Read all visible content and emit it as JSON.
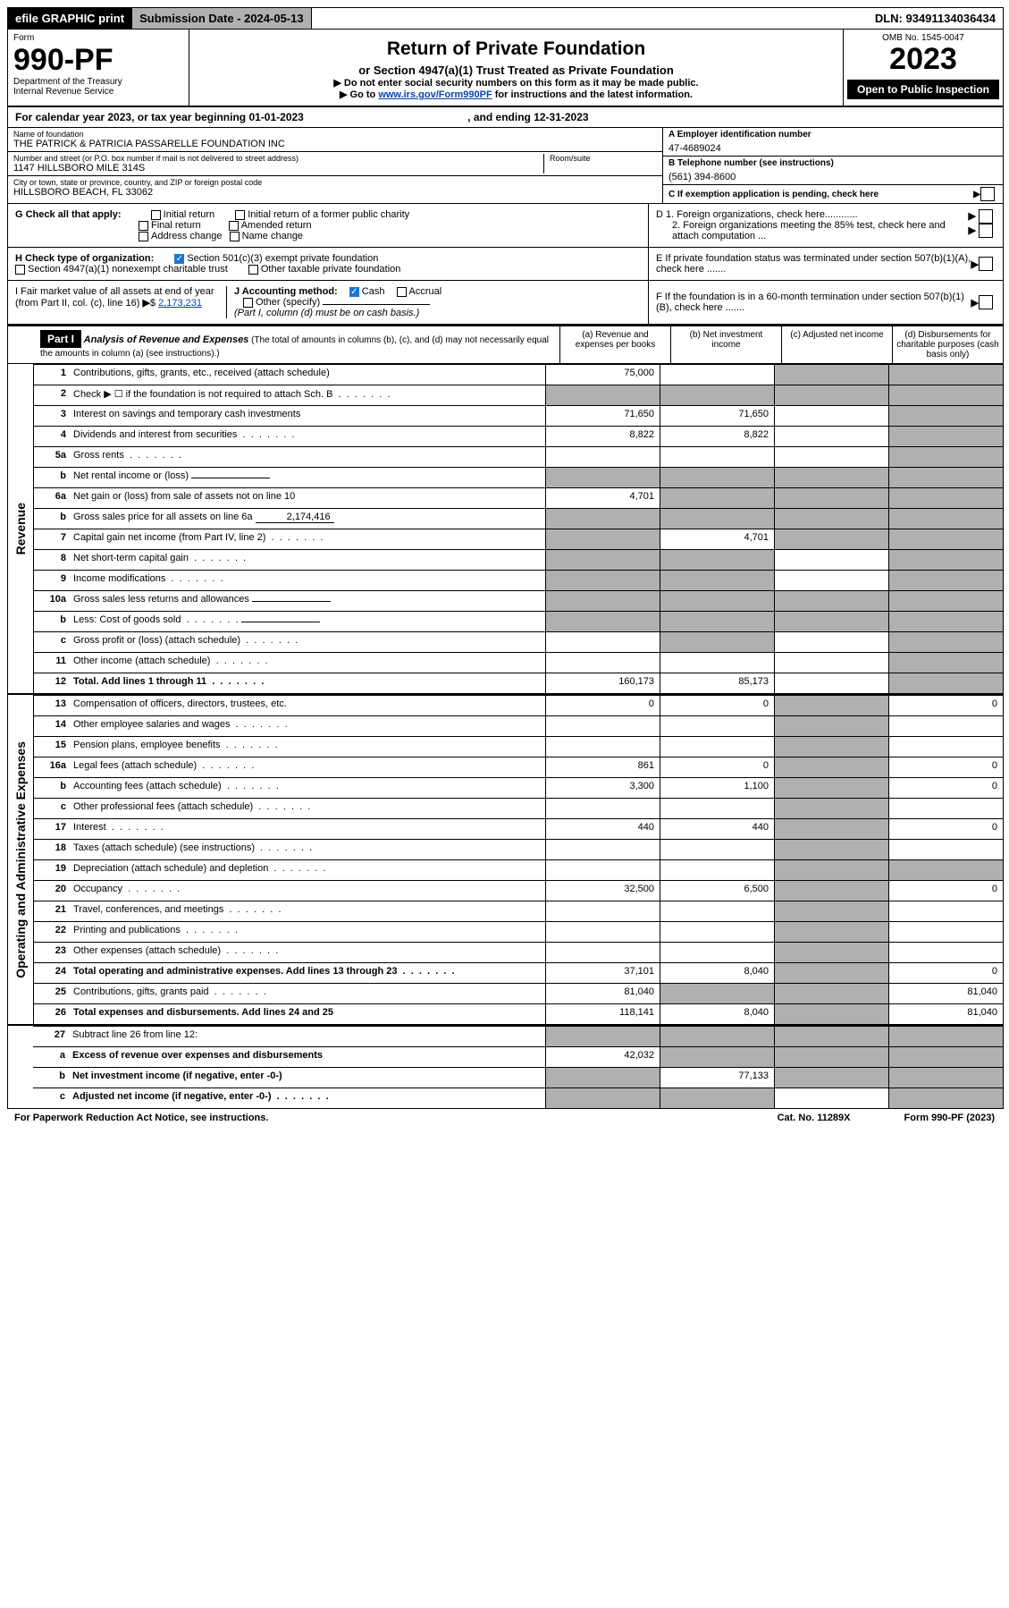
{
  "topbar": {
    "efile": "efile GRAPHIC print",
    "submission": "Submission Date - 2024-05-13",
    "dln": "DLN: 93491134036434"
  },
  "header": {
    "form_label": "Form",
    "form_no": "990-PF",
    "dept": "Department of the Treasury",
    "irs": "Internal Revenue Service",
    "title": "Return of Private Foundation",
    "subtitle": "or Section 4947(a)(1) Trust Treated as Private Foundation",
    "note1": "▶ Do not enter social security numbers on this form as it may be made public.",
    "note2_pre": "▶ Go to ",
    "note2_link": "www.irs.gov/Form990PF",
    "note2_post": " for instructions and the latest information.",
    "omb": "OMB No. 1545-0047",
    "year": "2023",
    "open": "Open to Public Inspection"
  },
  "cal_year": {
    "text_pre": "For calendar year 2023, or tax year beginning ",
    "begin": "01-01-2023",
    "text_mid": " , and ending ",
    "end": "12-31-2023"
  },
  "info": {
    "name_label": "Name of foundation",
    "name": "THE PATRICK & PATRICIA PASSARELLE FOUNDATION INC",
    "addr_label": "Number and street (or P.O. box number if mail is not delivered to street address)",
    "addr": "1147 HILLSBORO MILE 314S",
    "room_label": "Room/suite",
    "city_label": "City or town, state or province, country, and ZIP or foreign postal code",
    "city": "HILLSBORO BEACH, FL  33062",
    "a_label": "A Employer identification number",
    "a_val": "47-4689024",
    "b_label": "B Telephone number (see instructions)",
    "b_val": "(561) 394-8600",
    "c_label": "C If exemption application is pending, check here"
  },
  "checks": {
    "g_label": "G Check all that apply:",
    "g_opts": [
      "Initial return",
      "Initial return of a former public charity",
      "Final return",
      "Amended return",
      "Address change",
      "Name change"
    ],
    "h_label": "H Check type of organization:",
    "h_opt1": "Section 501(c)(3) exempt private foundation",
    "h_opt2": "Section 4947(a)(1) nonexempt charitable trust",
    "h_opt3": "Other taxable private foundation",
    "i_label": "I Fair market value of all assets at end of year (from Part II, col. (c), line 16)",
    "i_val": "2,173,231",
    "j_label": "J Accounting method:",
    "j_opts": [
      "Cash",
      "Accrual"
    ],
    "j_other": "Other (specify)",
    "j_note": "(Part I, column (d) must be on cash basis.)",
    "d1": "D 1. Foreign organizations, check here............",
    "d2": "2. Foreign organizations meeting the 85% test, check here and attach computation ...",
    "e": "E  If private foundation status was terminated under section 507(b)(1)(A), check here .......",
    "f": "F  If the foundation is in a 60-month termination under section 507(b)(1)(B), check here .......",
    "arrow": "▶"
  },
  "part1": {
    "label": "Part I",
    "title": "Analysis of Revenue and Expenses",
    "title_note": " (The total of amounts in columns (b), (c), and (d) may not necessarily equal the amounts in column (a) (see instructions).)",
    "col_a": "(a)   Revenue and expenses per books",
    "col_b": "(b)   Net investment income",
    "col_c": "(c)   Adjusted net income",
    "col_d": "(d)   Disbursements for charitable purposes (cash basis only)"
  },
  "side_labels": {
    "revenue": "Revenue",
    "expenses": "Operating and Administrative Expenses"
  },
  "rows": [
    {
      "n": "1",
      "d": "Contributions, gifts, grants, etc., received (attach schedule)",
      "a": "75,000",
      "b": "",
      "c": "shaded",
      "dd": "shaded"
    },
    {
      "n": "2",
      "d": "Check ▶ ☐ if the foundation is not required to attach Sch. B",
      "dots": true,
      "a": "shaded",
      "b": "shaded",
      "c": "shaded",
      "dd": "shaded"
    },
    {
      "n": "3",
      "d": "Interest on savings and temporary cash investments",
      "a": "71,650",
      "b": "71,650",
      "c": "",
      "dd": "shaded"
    },
    {
      "n": "4",
      "d": "Dividends and interest from securities",
      "dots": true,
      "a": "8,822",
      "b": "8,822",
      "c": "",
      "dd": "shaded"
    },
    {
      "n": "5a",
      "d": "Gross rents",
      "dots": true,
      "a": "",
      "b": "",
      "c": "",
      "dd": "shaded"
    },
    {
      "n": "b",
      "d": "Net rental income or (loss)",
      "inline": "",
      "a": "shaded",
      "b": "shaded",
      "c": "shaded",
      "dd": "shaded"
    },
    {
      "n": "6a",
      "d": "Net gain or (loss) from sale of assets not on line 10",
      "a": "4,701",
      "b": "shaded",
      "c": "shaded",
      "dd": "shaded"
    },
    {
      "n": "b",
      "d": "Gross sales price for all assets on line 6a",
      "inline": "2,174,416",
      "a": "shaded",
      "b": "shaded",
      "c": "shaded",
      "dd": "shaded"
    },
    {
      "n": "7",
      "d": "Capital gain net income (from Part IV, line 2)",
      "dots": true,
      "a": "shaded",
      "b": "4,701",
      "c": "shaded",
      "dd": "shaded"
    },
    {
      "n": "8",
      "d": "Net short-term capital gain",
      "dots": true,
      "a": "shaded",
      "b": "shaded",
      "c": "",
      "dd": "shaded"
    },
    {
      "n": "9",
      "d": "Income modifications",
      "dots": true,
      "a": "shaded",
      "b": "shaded",
      "c": "",
      "dd": "shaded"
    },
    {
      "n": "10a",
      "d": "Gross sales less returns and allowances",
      "inline": "",
      "a": "shaded",
      "b": "shaded",
      "c": "shaded",
      "dd": "shaded"
    },
    {
      "n": "b",
      "d": "Less: Cost of goods sold",
      "dots": true,
      "inline": "",
      "a": "shaded",
      "b": "shaded",
      "c": "shaded",
      "dd": "shaded"
    },
    {
      "n": "c",
      "d": "Gross profit or (loss) (attach schedule)",
      "dots": true,
      "a": "",
      "b": "shaded",
      "c": "",
      "dd": "shaded"
    },
    {
      "n": "11",
      "d": "Other income (attach schedule)",
      "dots": true,
      "a": "",
      "b": "",
      "c": "",
      "dd": "shaded"
    },
    {
      "n": "12",
      "d": "Total. Add lines 1 through 11",
      "dots": true,
      "bold": true,
      "a": "160,173",
      "b": "85,173",
      "c": "",
      "dd": "shaded"
    }
  ],
  "exp_rows": [
    {
      "n": "13",
      "d": "Compensation of officers, directors, trustees, etc.",
      "a": "0",
      "b": "0",
      "c": "shaded",
      "dd": "0"
    },
    {
      "n": "14",
      "d": "Other employee salaries and wages",
      "dots": true,
      "a": "",
      "b": "",
      "c": "shaded",
      "dd": ""
    },
    {
      "n": "15",
      "d": "Pension plans, employee benefits",
      "dots": true,
      "a": "",
      "b": "",
      "c": "shaded",
      "dd": ""
    },
    {
      "n": "16a",
      "d": "Legal fees (attach schedule)",
      "dots": true,
      "a": "861",
      "b": "0",
      "c": "shaded",
      "dd": "0"
    },
    {
      "n": "b",
      "d": "Accounting fees (attach schedule)",
      "dots": true,
      "a": "3,300",
      "b": "1,100",
      "c": "shaded",
      "dd": "0"
    },
    {
      "n": "c",
      "d": "Other professional fees (attach schedule)",
      "dots": true,
      "a": "",
      "b": "",
      "c": "shaded",
      "dd": ""
    },
    {
      "n": "17",
      "d": "Interest",
      "dots": true,
      "a": "440",
      "b": "440",
      "c": "shaded",
      "dd": "0"
    },
    {
      "n": "18",
      "d": "Taxes (attach schedule) (see instructions)",
      "dots": true,
      "a": "",
      "b": "",
      "c": "shaded",
      "dd": ""
    },
    {
      "n": "19",
      "d": "Depreciation (attach schedule) and depletion",
      "dots": true,
      "a": "",
      "b": "",
      "c": "shaded",
      "dd": "shaded"
    },
    {
      "n": "20",
      "d": "Occupancy",
      "dots": true,
      "a": "32,500",
      "b": "6,500",
      "c": "shaded",
      "dd": "0"
    },
    {
      "n": "21",
      "d": "Travel, conferences, and meetings",
      "dots": true,
      "a": "",
      "b": "",
      "c": "shaded",
      "dd": ""
    },
    {
      "n": "22",
      "d": "Printing and publications",
      "dots": true,
      "a": "",
      "b": "",
      "c": "shaded",
      "dd": ""
    },
    {
      "n": "23",
      "d": "Other expenses (attach schedule)",
      "dots": true,
      "a": "",
      "b": "",
      "c": "shaded",
      "dd": ""
    },
    {
      "n": "24",
      "d": "Total operating and administrative expenses. Add lines 13 through 23",
      "dots": true,
      "bold": true,
      "a": "37,101",
      "b": "8,040",
      "c": "shaded",
      "dd": "0"
    },
    {
      "n": "25",
      "d": "Contributions, gifts, grants paid",
      "dots": true,
      "a": "81,040",
      "b": "shaded",
      "c": "shaded",
      "dd": "81,040"
    },
    {
      "n": "26",
      "d": "Total expenses and disbursements. Add lines 24 and 25",
      "bold": true,
      "a": "118,141",
      "b": "8,040",
      "c": "shaded",
      "dd": "81,040"
    }
  ],
  "bottom_rows": [
    {
      "n": "27",
      "d": "Subtract line 26 from line 12:",
      "a": "shaded",
      "b": "shaded",
      "c": "shaded",
      "dd": "shaded"
    },
    {
      "n": "a",
      "d": "Excess of revenue over expenses and disbursements",
      "bold": true,
      "a": "42,032",
      "b": "shaded",
      "c": "shaded",
      "dd": "shaded"
    },
    {
      "n": "b",
      "d": "Net investment income (if negative, enter -0-)",
      "bold": true,
      "a": "shaded",
      "b": "77,133",
      "c": "shaded",
      "dd": "shaded"
    },
    {
      "n": "c",
      "d": "Adjusted net income (if negative, enter -0-)",
      "dots": true,
      "bold": true,
      "a": "shaded",
      "b": "shaded",
      "c": "",
      "dd": "shaded"
    }
  ],
  "footer": {
    "left": "For Paperwork Reduction Act Notice, see instructions.",
    "mid": "Cat. No. 11289X",
    "right": "Form 990-PF (2023)"
  }
}
